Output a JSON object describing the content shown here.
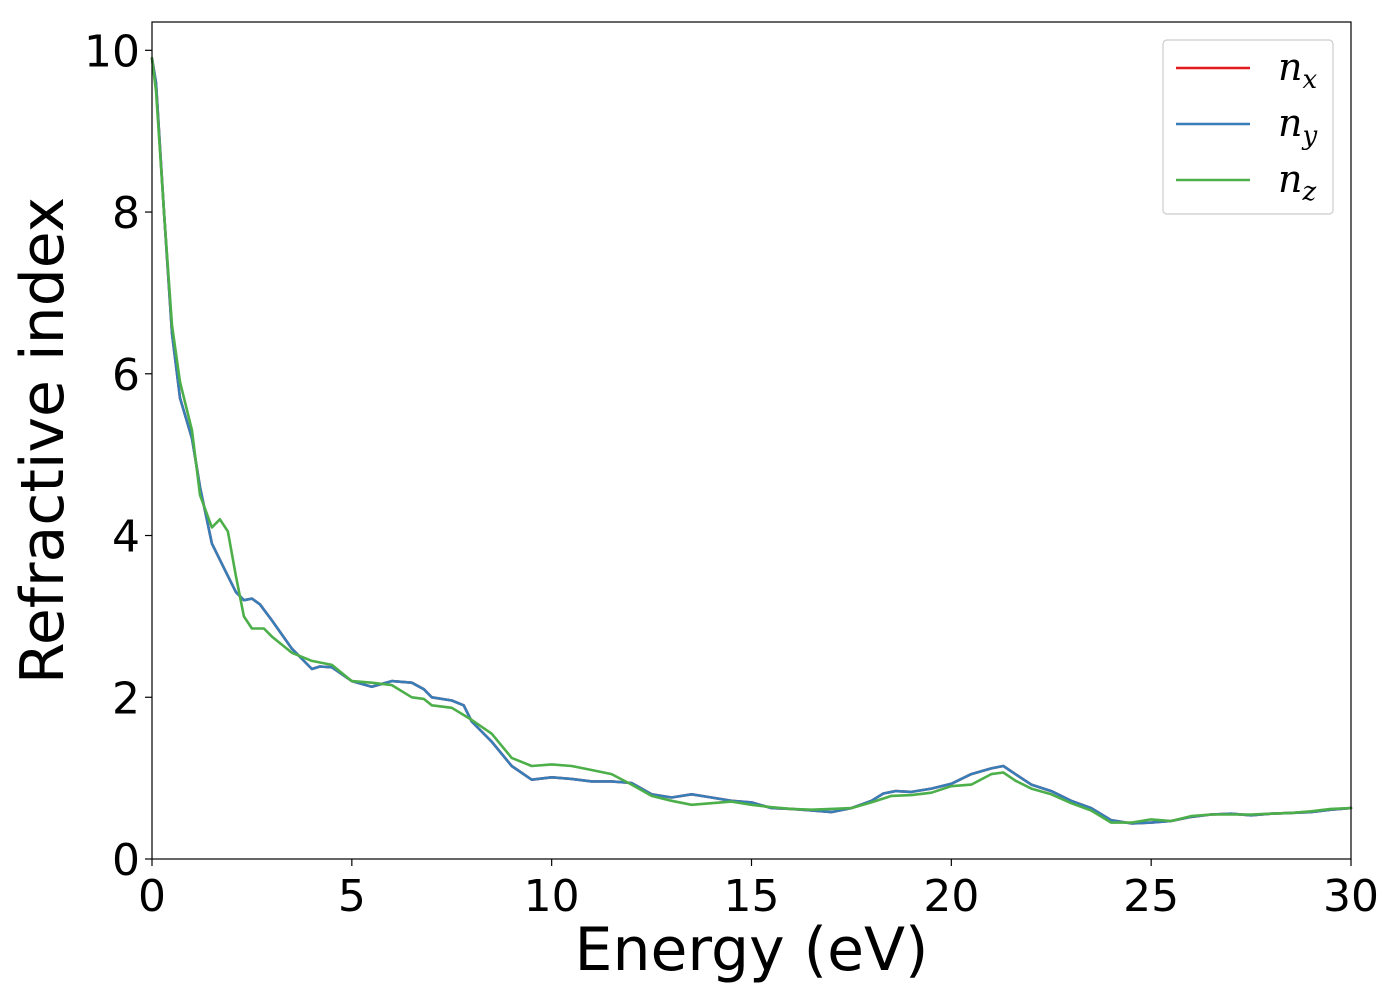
{
  "chart_data": {
    "type": "line",
    "xlabel": "Energy (eV)",
    "ylabel": "Refractive index",
    "xlim": [
      0,
      30
    ],
    "ylim": [
      0,
      10.35
    ],
    "xticks": [
      0,
      5,
      10,
      15,
      20,
      25,
      30
    ],
    "yticks": [
      0,
      2,
      4,
      6,
      8,
      10
    ],
    "grid": false,
    "legend_position": "top-right",
    "series": [
      {
        "name": "n_x",
        "legend_base": "n",
        "legend_sub": "x",
        "color": "#e41a1c",
        "x": [
          0,
          0.1,
          0.3,
          0.5,
          0.7,
          1.0,
          1.2,
          1.5,
          1.8,
          2.1,
          2.3,
          2.5,
          2.7,
          3.0,
          3.5,
          4.0,
          4.2,
          4.5,
          5.0,
          5.5,
          6.0,
          6.5,
          6.8,
          7.0,
          7.5,
          7.8,
          8.0,
          8.5,
          9.0,
          9.5,
          10.0,
          10.5,
          11.0,
          11.5,
          12.0,
          12.5,
          13.0,
          13.5,
          14.0,
          14.5,
          15.0,
          15.5,
          16.0,
          16.5,
          17.0,
          17.5,
          18.0,
          18.3,
          18.6,
          19.0,
          19.5,
          20.0,
          20.5,
          21.0,
          21.3,
          21.6,
          22.0,
          22.5,
          23.0,
          23.5,
          24.0,
          24.5,
          25.0,
          25.5,
          26.0,
          26.5,
          27.0,
          27.5,
          28.0,
          28.5,
          29.0,
          29.5,
          30.0
        ],
        "y": [
          9.9,
          9.6,
          8.0,
          6.5,
          5.7,
          5.2,
          4.6,
          3.9,
          3.6,
          3.3,
          3.2,
          3.22,
          3.15,
          2.95,
          2.6,
          2.35,
          2.38,
          2.37,
          2.2,
          2.13,
          2.2,
          2.18,
          2.1,
          2.0,
          1.96,
          1.9,
          1.7,
          1.45,
          1.15,
          0.98,
          1.01,
          0.99,
          0.96,
          0.96,
          0.94,
          0.8,
          0.76,
          0.8,
          0.76,
          0.72,
          0.7,
          0.63,
          0.62,
          0.6,
          0.58,
          0.63,
          0.72,
          0.81,
          0.84,
          0.83,
          0.87,
          0.93,
          1.05,
          1.12,
          1.15,
          1.05,
          0.92,
          0.84,
          0.72,
          0.63,
          0.48,
          0.44,
          0.45,
          0.47,
          0.52,
          0.55,
          0.56,
          0.54,
          0.56,
          0.57,
          0.58,
          0.61,
          0.63
        ]
      },
      {
        "name": "n_y",
        "legend_base": "n",
        "legend_sub": "y",
        "color": "#377eb8",
        "x": [
          0,
          0.1,
          0.3,
          0.5,
          0.7,
          1.0,
          1.2,
          1.5,
          1.8,
          2.1,
          2.3,
          2.5,
          2.7,
          3.0,
          3.5,
          4.0,
          4.2,
          4.5,
          5.0,
          5.5,
          6.0,
          6.5,
          6.8,
          7.0,
          7.5,
          7.8,
          8.0,
          8.5,
          9.0,
          9.5,
          10.0,
          10.5,
          11.0,
          11.5,
          12.0,
          12.5,
          13.0,
          13.5,
          14.0,
          14.5,
          15.0,
          15.5,
          16.0,
          16.5,
          17.0,
          17.5,
          18.0,
          18.3,
          18.6,
          19.0,
          19.5,
          20.0,
          20.5,
          21.0,
          21.3,
          21.6,
          22.0,
          22.5,
          23.0,
          23.5,
          24.0,
          24.5,
          25.0,
          25.5,
          26.0,
          26.5,
          27.0,
          27.5,
          28.0,
          28.5,
          29.0,
          29.5,
          30.0
        ],
        "y": [
          9.9,
          9.6,
          8.0,
          6.5,
          5.7,
          5.2,
          4.6,
          3.9,
          3.6,
          3.3,
          3.2,
          3.22,
          3.15,
          2.95,
          2.6,
          2.35,
          2.38,
          2.37,
          2.2,
          2.13,
          2.2,
          2.18,
          2.1,
          2.0,
          1.96,
          1.9,
          1.7,
          1.45,
          1.15,
          0.98,
          1.01,
          0.99,
          0.96,
          0.96,
          0.94,
          0.8,
          0.76,
          0.8,
          0.76,
          0.72,
          0.7,
          0.63,
          0.62,
          0.6,
          0.58,
          0.63,
          0.72,
          0.81,
          0.84,
          0.83,
          0.87,
          0.93,
          1.05,
          1.12,
          1.15,
          1.05,
          0.92,
          0.84,
          0.72,
          0.63,
          0.48,
          0.44,
          0.45,
          0.47,
          0.52,
          0.55,
          0.56,
          0.54,
          0.56,
          0.57,
          0.58,
          0.61,
          0.63
        ]
      },
      {
        "name": "n_z",
        "legend_base": "n",
        "legend_sub": "z",
        "color": "#4daf4a",
        "x": [
          0,
          0.1,
          0.3,
          0.5,
          0.7,
          1.0,
          1.2,
          1.5,
          1.7,
          1.9,
          2.1,
          2.3,
          2.5,
          2.8,
          3.0,
          3.5,
          4.0,
          4.5,
          5.0,
          5.5,
          6.0,
          6.5,
          6.8,
          7.0,
          7.5,
          8.0,
          8.5,
          9.0,
          9.5,
          10.0,
          10.5,
          11.0,
          11.5,
          12.0,
          12.5,
          13.0,
          13.5,
          14.0,
          14.5,
          15.0,
          15.5,
          16.0,
          16.5,
          17.0,
          17.5,
          18.0,
          18.5,
          19.0,
          19.5,
          20.0,
          20.5,
          21.0,
          21.3,
          21.6,
          22.0,
          22.5,
          23.0,
          23.5,
          24.0,
          24.5,
          25.0,
          25.5,
          26.0,
          26.5,
          27.0,
          27.5,
          28.0,
          28.5,
          29.0,
          29.5,
          30.0
        ],
        "y": [
          9.9,
          9.5,
          8.0,
          6.6,
          5.9,
          5.3,
          4.5,
          4.1,
          4.2,
          4.05,
          3.5,
          3.0,
          2.85,
          2.85,
          2.75,
          2.55,
          2.45,
          2.4,
          2.2,
          2.18,
          2.15,
          2.0,
          1.98,
          1.9,
          1.87,
          1.72,
          1.55,
          1.25,
          1.15,
          1.17,
          1.15,
          1.1,
          1.05,
          0.92,
          0.78,
          0.72,
          0.67,
          0.69,
          0.71,
          0.67,
          0.64,
          0.62,
          0.61,
          0.62,
          0.63,
          0.7,
          0.78,
          0.79,
          0.82,
          0.9,
          0.92,
          1.05,
          1.07,
          0.97,
          0.87,
          0.8,
          0.69,
          0.6,
          0.45,
          0.45,
          0.49,
          0.47,
          0.53,
          0.55,
          0.55,
          0.55,
          0.56,
          0.57,
          0.59,
          0.62,
          0.63
        ]
      }
    ]
  }
}
